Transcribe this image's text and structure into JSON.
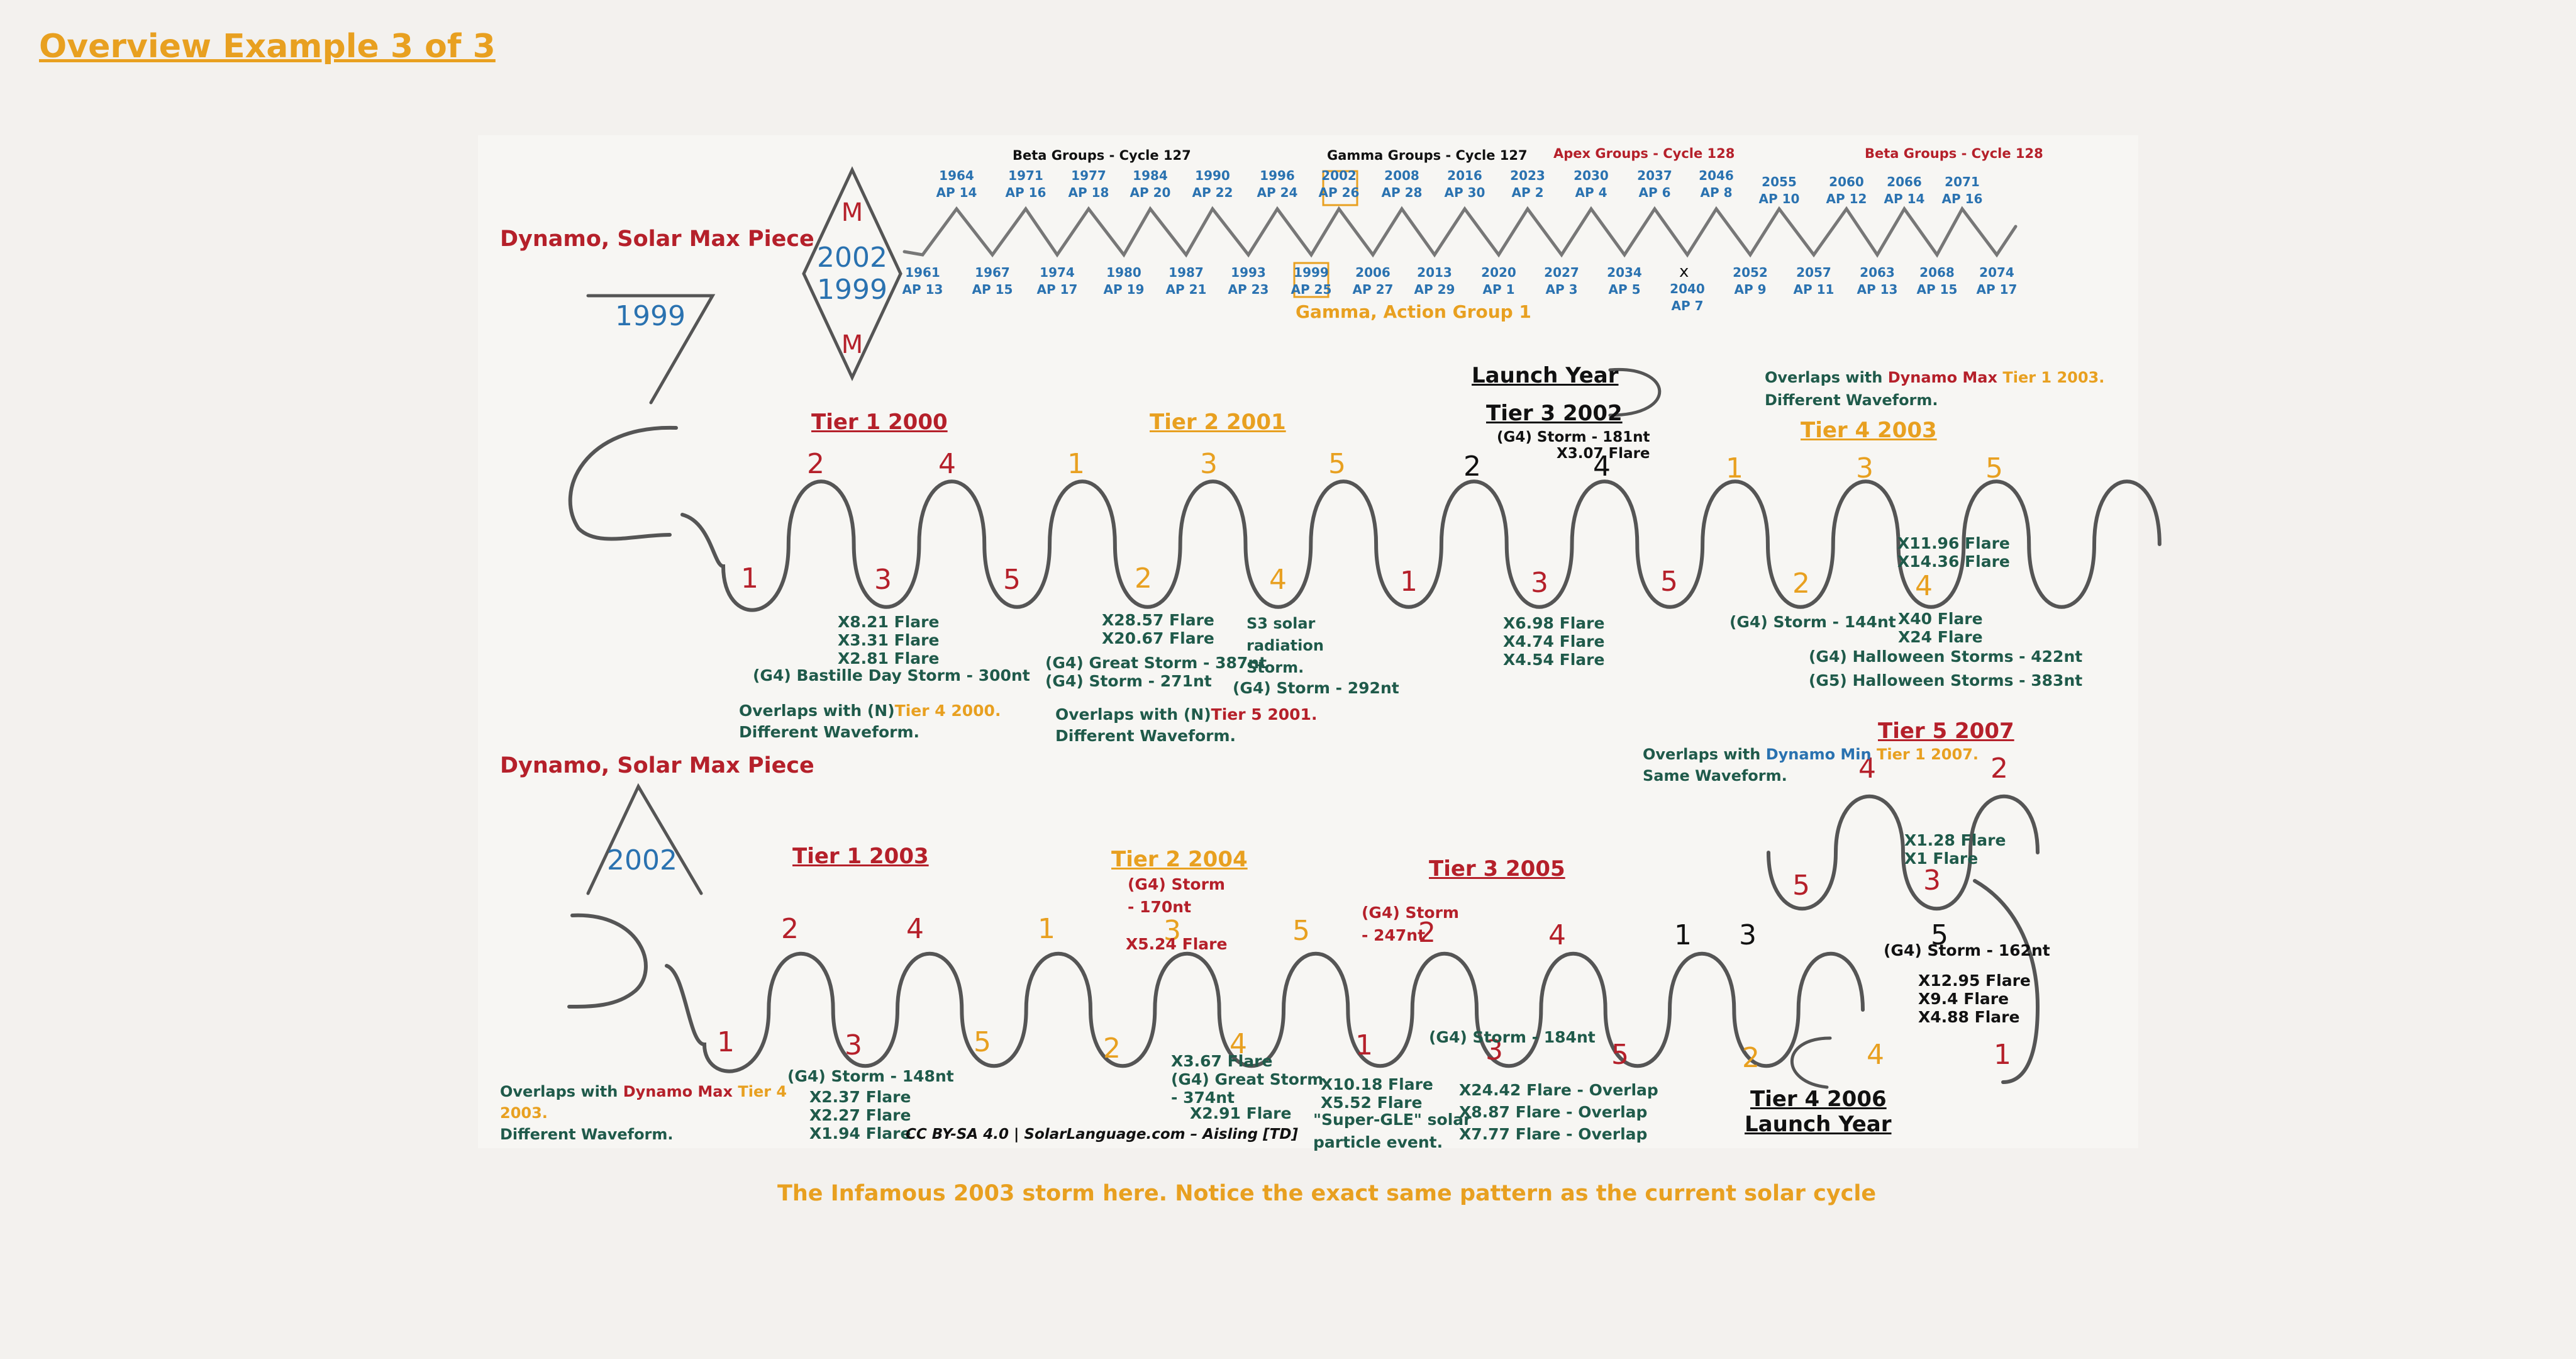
{
  "page_title": "Overview Example 3 of 3",
  "colors": {
    "red": "#b5202a",
    "blue": "#2a72b0",
    "orange": "#e8a020",
    "green": "#1f5a4a",
    "black": "#111111",
    "background": "#f3f1ee"
  },
  "timeline": {
    "headers": [
      "Beta Groups - Cycle 127",
      "Gamma Groups - Cycle 127",
      "Apex Groups - Cycle 128",
      "Beta Groups - Cycle 128"
    ],
    "peaks": [
      {
        "year": "1964",
        "ap": "AP 14"
      },
      {
        "year": "1971",
        "ap": "AP 16"
      },
      {
        "year": "1977",
        "ap": "AP 18"
      },
      {
        "year": "1984",
        "ap": "AP 20"
      },
      {
        "year": "1990",
        "ap": "AP 22"
      },
      {
        "year": "1996",
        "ap": "AP 24"
      },
      {
        "year": "2002",
        "ap": "AP 26"
      },
      {
        "year": "2008",
        "ap": "AP 28"
      },
      {
        "year": "2016",
        "ap": "AP 30"
      },
      {
        "year": "2023",
        "ap": "AP 2"
      },
      {
        "year": "2030",
        "ap": "AP 4"
      },
      {
        "year": "2037",
        "ap": "AP 6"
      },
      {
        "year": "2046",
        "ap": "AP 8"
      },
      {
        "year": "2055",
        "ap": "AP 10"
      },
      {
        "year": "2060",
        "ap": "AP 12"
      },
      {
        "year": "2066",
        "ap": "AP 14"
      },
      {
        "year": "2071",
        "ap": "AP 16"
      }
    ],
    "troughs": [
      {
        "year": "1961",
        "ap": "AP 13"
      },
      {
        "year": "1967",
        "ap": "AP 15"
      },
      {
        "year": "1974",
        "ap": "AP 17"
      },
      {
        "year": "1980",
        "ap": "AP 19"
      },
      {
        "year": "1987",
        "ap": "AP 21"
      },
      {
        "year": "1993",
        "ap": "AP 23"
      },
      {
        "year": "1999",
        "ap": "AP 25"
      },
      {
        "year": "2006",
        "ap": "AP 27"
      },
      {
        "year": "2013",
        "ap": "AP 29"
      },
      {
        "year": "2020",
        "ap": "AP 1"
      },
      {
        "year": "2027",
        "ap": "AP 3"
      },
      {
        "year": "2034",
        "ap": "AP 5"
      },
      {
        "year": "2040",
        "ap": "AP 7"
      },
      {
        "year": "2052",
        "ap": "AP 9"
      },
      {
        "year": "2057",
        "ap": "AP 11"
      },
      {
        "year": "2063",
        "ap": "AP 13"
      },
      {
        "year": "2068",
        "ap": "AP 15"
      },
      {
        "year": "2074",
        "ap": "AP 17"
      }
    ],
    "x_mark": "x",
    "gamma_action_label": "Gamma, Action Group 1"
  },
  "diamond": {
    "top": "M",
    "years": "2002\n1999",
    "bottom": "M"
  },
  "section1": {
    "label": "Dynamo, Solar Max Piece",
    "triangle_year": "1999",
    "tiers": [
      "Tier 1 2000",
      "Tier 2 2001",
      "Tier 3 2002",
      "Tier 4 2003"
    ],
    "launch_year": "Launch Year",
    "tier3_note": "(G4) Storm - 181nt\nX3.07 Flare",
    "numbers": [
      "2",
      "4",
      "1",
      "3",
      "5",
      "2",
      "4",
      "1",
      "3",
      "5",
      "1",
      "3",
      "5",
      "2",
      "4",
      "1",
      "3",
      "5",
      "2",
      "4"
    ],
    "note_overlap_tier4_line1": "Overlaps with ",
    "note_overlap_tier4_dynamo": "Dynamo Max",
    "note_overlap_tier4_tier": " Tier 1 2003.",
    "note_overlap_tier4_line2": "Different Waveform.",
    "ann_t1": "X8.21 Flare\nX3.31 Flare\nX2.81 Flare",
    "ann_bastille": "(G4) Bastille Day Storm - 300nt",
    "ann_t2a": "X28.57 Flare\nX20.67 Flare",
    "ann_t2b": "(G4) Great Storm - 387nt\n(G4) Storm - 271nt",
    "ann_s3": "S3 solar\nradiation\nStorm.",
    "ann_292": "(G4) Storm - 292nt",
    "ann_t3": "X6.98 Flare\nX4.74 Flare\nX4.54 Flare",
    "ann_144": "(G4) Storm - 144nt",
    "ann_t4a": "X11.96 Flare\nX14.36 Flare",
    "ann_t4b": "X40 Flare\nX24 Flare",
    "ann_halloween": "(G4) Halloween Storms - 422nt\n(G5) Halloween Storms - 383nt",
    "overlap_a_1": "Overlaps with (N)",
    "overlap_a_tier": "Tier 4 2000.",
    "overlap_a_2": "Different Waveform.",
    "overlap_b_1": "Overlaps with (N)",
    "overlap_b_tier": "Tier 5 2001.",
    "overlap_b_2": "Different Waveform."
  },
  "section2": {
    "label": "Dynamo, Solar Max Piece",
    "triangle_year": "2002",
    "tiers": [
      "Tier 1 2003",
      "Tier 2 2004",
      "Tier 3 2005",
      "Tier 5 2007"
    ],
    "tier4": "Tier 4 2006",
    "launch_year": "Launch Year",
    "numbers": [
      "2",
      "4",
      "1",
      "3",
      "5",
      "2",
      "4",
      "1",
      "2",
      "3",
      "5",
      "1",
      "3",
      "5",
      "2",
      "4",
      "1",
      "4",
      "2",
      "5",
      "3"
    ],
    "ann_148": "(G4) Storm - 148nt",
    "ann_t1": "X2.37 Flare\nX2.27 Flare\nX1.94 Flare",
    "ann_170": "(G4) Storm\n- 170nt",
    "ann_x524": "X5.24 Flare",
    "ann_t2": "X3.67 Flare\n(G4) Great Storm\n- 374nt",
    "ann_x291": "X2.91 Flare",
    "ann_247": "(G4) Storm\n- 247nt",
    "ann_t3a": "X10.18 Flare\nX5.52 Flare",
    "ann_gle": "\"Super-GLE\" solar\nparticle event.",
    "ann_184": "(G4) Storm - 184nt",
    "ann_overlap": "X24.42 Flare - Overlap\nX8.87 Flare - Overlap\nX7.77 Flare - Overlap",
    "ann_162": "(G4) Storm - 162nt",
    "ann_t5a": "X12.95 Flare\nX9.4 Flare\nX4.88 Flare",
    "ann_t5b": "X1.28 Flare\nX1 Flare",
    "overlap_min_1": "Overlaps with ",
    "overlap_min_dynamo": "Dynamo Min",
    "overlap_min_tier": " Tier 1 2007.",
    "overlap_min_2": "Same Waveform.",
    "overlap_max_1": "Overlaps with ",
    "overlap_max_dynamo": "Dynamo Max",
    "overlap_max_tier": " Tier 4",
    "overlap_max_year": "2003.",
    "overlap_max_2": "Different Waveform."
  },
  "credit": "CC BY-SA 4.0 | SolarLanguage.com – Aisling [TD]",
  "caption": "The Infamous 2003 storm here. Notice the exact same pattern as the current solar cycle"
}
